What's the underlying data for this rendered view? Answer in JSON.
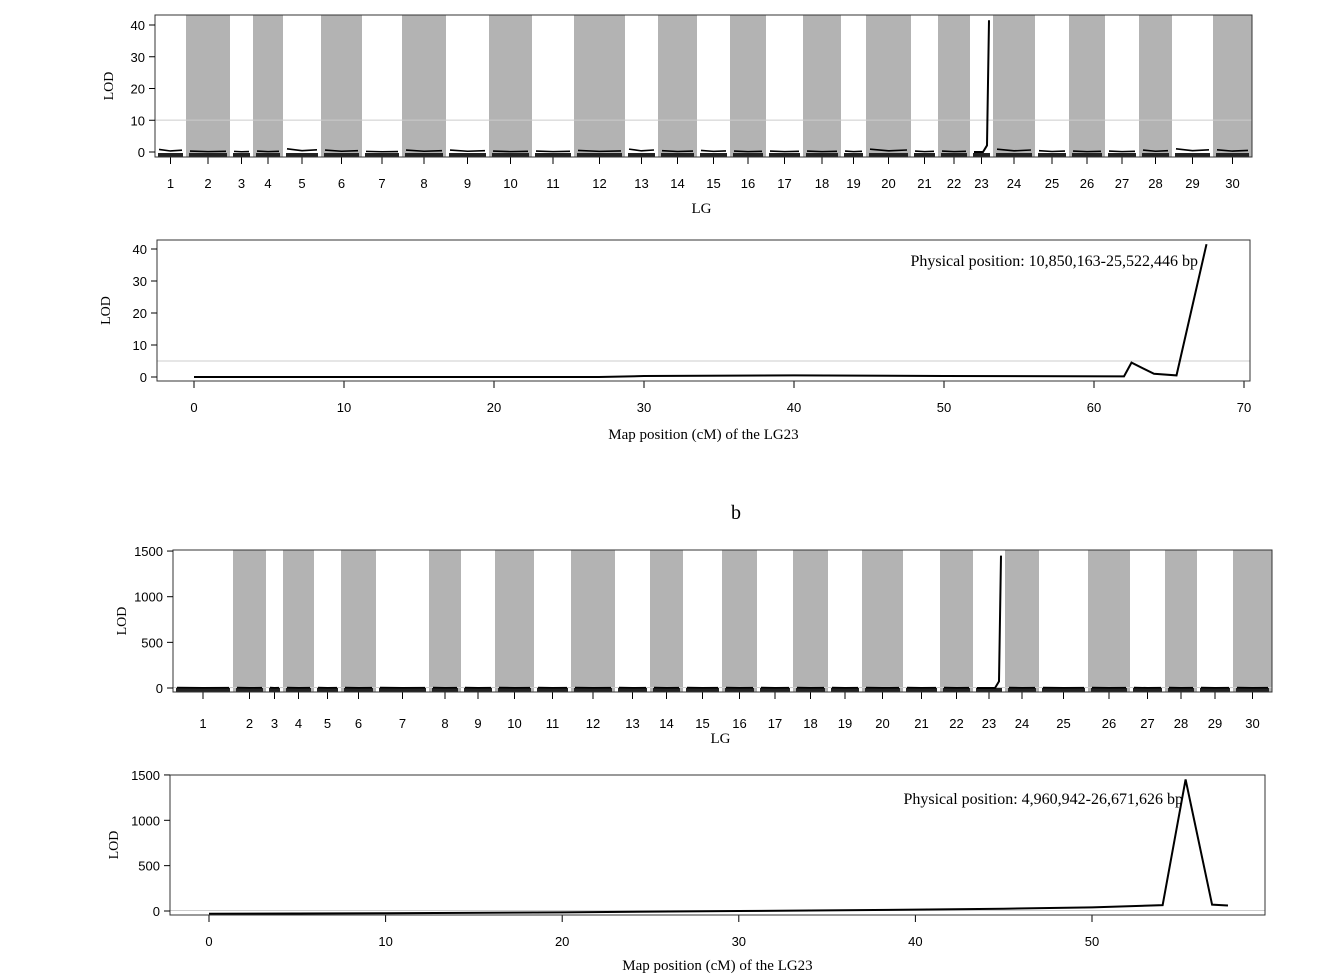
{
  "panel_label_b": "b",
  "chart_data": [
    {
      "type": "line",
      "panel": "a-genome",
      "xlabel": "LG",
      "ylabel": "LOD",
      "ylim": [
        0,
        43
      ],
      "yticks": [
        0,
        10,
        20,
        30,
        40
      ],
      "categories": [
        "1",
        "2",
        "3",
        "4",
        "5",
        "6",
        "7",
        "8",
        "9",
        "10",
        "11",
        "12",
        "13",
        "14",
        "15",
        "16",
        "17",
        "18",
        "19",
        "20",
        "21",
        "22",
        "23",
        "24",
        "25",
        "26",
        "27",
        "28",
        "29",
        "30"
      ],
      "max_lod_per_lg": [
        0.8,
        0.3,
        0.2,
        0.3,
        1.0,
        0.6,
        0.2,
        0.6,
        0.6,
        0.3,
        0.3,
        0.5,
        0.9,
        0.4,
        0.5,
        0.3,
        0.3,
        0.3,
        0.3,
        0.9,
        0.3,
        0.3,
        41.5,
        0.9,
        0.4,
        0.3,
        0.3,
        0.6,
        1.0,
        0.7
      ],
      "threshold": 5,
      "band_colors": [
        "#ffffff",
        "#b3b3b3"
      ]
    },
    {
      "type": "line",
      "panel": "a-LG23",
      "xlabel": "Map position (cM) of the LG23",
      "ylabel": "LOD",
      "annotation": "Physical position: 10,850,163-25,522,446 bp",
      "xlim": [
        -2.5,
        70.5
      ],
      "ylim": [
        0,
        43
      ],
      "xticks": [
        0,
        10,
        20,
        30,
        40,
        50,
        60,
        70
      ],
      "yticks": [
        0,
        10,
        20,
        30,
        40
      ],
      "x": [
        0,
        27,
        30,
        40,
        50,
        62,
        62.5,
        64,
        65.5,
        67.5
      ],
      "y": [
        0,
        0,
        0.3,
        0.5,
        0.3,
        0.2,
        4.5,
        1,
        0.5,
        41.5
      ],
      "threshold": 5
    },
    {
      "type": "line",
      "panel": "b-genome",
      "xlabel": "LG",
      "ylabel": "LOD",
      "ylim": [
        0,
        1500
      ],
      "yticks": [
        0,
        500,
        1000,
        1500
      ],
      "categories": [
        "1",
        "2",
        "3",
        "4",
        "5",
        "6",
        "7",
        "8",
        "9",
        "10",
        "11",
        "12",
        "13",
        "14",
        "15",
        "16",
        "17",
        "18",
        "19",
        "20",
        "21",
        "22",
        "23",
        "24",
        "25",
        "26",
        "27",
        "28",
        "29",
        "30"
      ],
      "max_lod_per_lg": [
        5,
        5,
        5,
        5,
        5,
        5,
        5,
        5,
        5,
        5,
        5,
        5,
        5,
        5,
        5,
        5,
        5,
        5,
        5,
        5,
        5,
        5,
        1450,
        5,
        5,
        5,
        5,
        5,
        5,
        5
      ],
      "threshold": 5,
      "band_colors": [
        "#ffffff",
        "#b3b3b3"
      ]
    },
    {
      "type": "line",
      "panel": "b-LG23",
      "xlabel": "Map position (cM) of the LG23",
      "ylabel": "LOD",
      "annotation": "Physical position: 4,960,942-26,671,626 bp",
      "xlim": [
        -2,
        60
      ],
      "ylim": [
        0,
        1500
      ],
      "xticks": [
        0,
        10,
        20,
        30,
        40,
        50
      ],
      "yticks": [
        0,
        500,
        1000,
        1500
      ],
      "x": [
        0,
        10,
        20,
        30,
        40,
        45,
        50,
        54,
        55.3,
        56.8,
        57.7
      ],
      "y": [
        -30,
        -25,
        -15,
        0,
        15,
        25,
        40,
        65,
        1450,
        70,
        60
      ],
      "threshold": 5
    }
  ]
}
